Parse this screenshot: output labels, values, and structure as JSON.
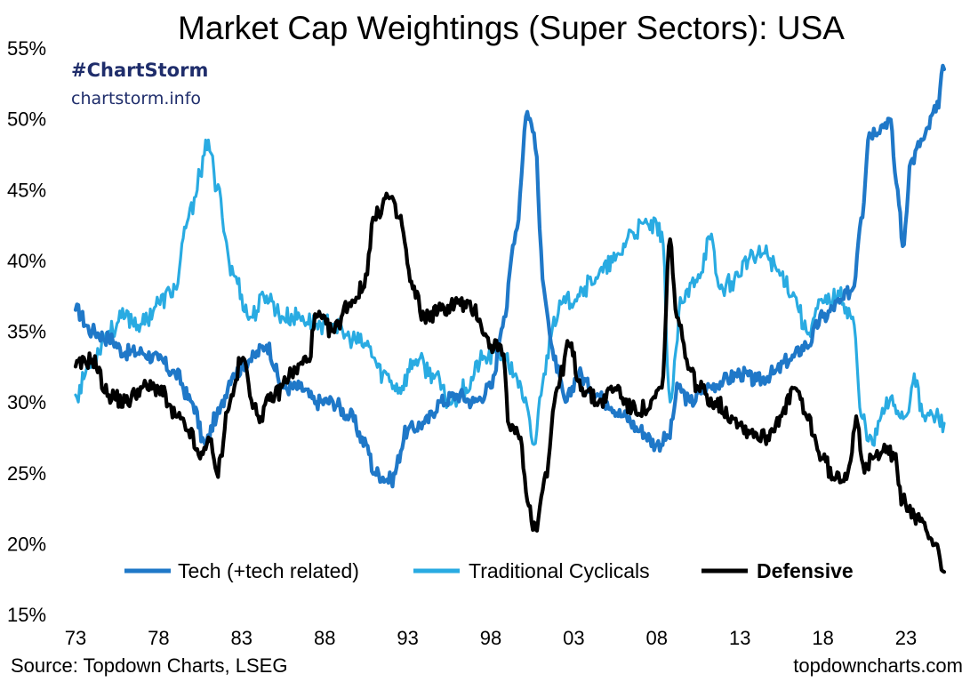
{
  "chart_data": {
    "type": "line",
    "title": "Market Cap Weightings (Super Sectors): USA",
    "xlabel": "",
    "ylabel": "",
    "ylim": [
      15,
      55
    ],
    "xlim": [
      1973,
      2025.5
    ],
    "y_ticks": [
      15,
      20,
      25,
      30,
      35,
      40,
      45,
      50,
      55
    ],
    "y_tick_labels": [
      "15%",
      "20%",
      "25%",
      "30%",
      "35%",
      "40%",
      "45%",
      "50%",
      "55%"
    ],
    "x_ticks": [
      1973,
      1978,
      1983,
      1988,
      1993,
      1998,
      2003,
      2008,
      2013,
      2018,
      2023
    ],
    "x_tick_labels": [
      "73",
      "78",
      "83",
      "88",
      "93",
      "98",
      "03",
      "08",
      "13",
      "18",
      "23"
    ],
    "grid": false,
    "legend_position": "bottom-center",
    "series": [
      {
        "name": "Tech (+tech related)",
        "color": "#1f78c8",
        "bold_label": false,
        "x": [
          1973,
          1974,
          1975,
          1976,
          1977,
          1978,
          1979,
          1980,
          1980.8,
          1981.5,
          1982.5,
          1983.5,
          1984.5,
          1985.5,
          1986.5,
          1987.5,
          1988.5,
          1989.5,
          1990.5,
          1991,
          1992,
          1993,
          1994,
          1995,
          1996,
          1997,
          1998,
          1998.8,
          1999.5,
          2000.2,
          2000.6,
          2001.2,
          2001.8,
          2002.5,
          2003.3,
          2004,
          2005,
          2006,
          2007,
          2008,
          2008.7,
          2009.3,
          2010,
          2011,
          2012,
          2013,
          2014,
          2015,
          2016,
          2017,
          2018,
          2019,
          2019.8,
          2020.3,
          2020.8,
          2021.5,
          2022,
          2022.5,
          2022.8,
          2023.3,
          2024,
          2024.8,
          2025.3
        ],
        "values": [
          36.5,
          35,
          34.5,
          33.5,
          33.5,
          33,
          32,
          30,
          27,
          29,
          32,
          33,
          34,
          31,
          31,
          30,
          30,
          29,
          27,
          25,
          24.5,
          28,
          28.5,
          30,
          30.5,
          30,
          31,
          36,
          42,
          50.5,
          49,
          38,
          33,
          30,
          32,
          31,
          30,
          29,
          28,
          27,
          27.5,
          31,
          30,
          31,
          31.5,
          32,
          31.5,
          32,
          33,
          34,
          36,
          37,
          38,
          43,
          49,
          49.5,
          50,
          45,
          41,
          47,
          48.5,
          50.5,
          53.5
        ]
      },
      {
        "name": "Traditional Cyclicals",
        "color": "#29abe2",
        "bold_label": false,
        "x": [
          1973,
          1974,
          1975,
          1976,
          1977,
          1978,
          1979,
          1979.8,
          1980.5,
          1981,
          1981.5,
          1982.5,
          1983.5,
          1984.5,
          1985.5,
          1986.5,
          1987.5,
          1988.5,
          1989.5,
          1990.5,
          1991.5,
          1992.5,
          1993.5,
          1994.5,
          1995.5,
          1996.5,
          1997.5,
          1998.5,
          1999.5,
          2000,
          2000.6,
          2001.2,
          2001.8,
          2002.5,
          2003.5,
          2004.5,
          2005.5,
          2006.5,
          2007.5,
          2008.3,
          2008.8,
          2009.5,
          2010.5,
          2011.2,
          2011.8,
          2012.5,
          2013.5,
          2014.5,
          2015.5,
          2016.3,
          2017,
          2018,
          2019,
          2019.8,
          2020.3,
          2021,
          2021.5,
          2022,
          2023,
          2023.5,
          2024,
          2024.8,
          2025.3
        ],
        "values": [
          30.5,
          33,
          35,
          36,
          35.5,
          37,
          38,
          43,
          46,
          48.5,
          45,
          39,
          36,
          37.5,
          36,
          36,
          35.5,
          35.5,
          34.5,
          34,
          32,
          31,
          33,
          32,
          30,
          31,
          33,
          33.5,
          32,
          30,
          27,
          32,
          36,
          37,
          38,
          39,
          40,
          42,
          42.5,
          42,
          30,
          37,
          39,
          41.5,
          38,
          38.5,
          40,
          40.5,
          39,
          37.5,
          35,
          37,
          37.5,
          36,
          29,
          27,
          29,
          30,
          29,
          32,
          29,
          29,
          28.5
        ]
      },
      {
        "name": "Defensive",
        "color": "#000000",
        "bold_label": true,
        "x": [
          1973,
          1974,
          1975,
          1976,
          1977,
          1978,
          1979,
          1979.8,
          1980.5,
          1981,
          1981.5,
          1982.3,
          1983,
          1984,
          1985,
          1986,
          1987,
          1987.5,
          1988.5,
          1989.5,
          1990.3,
          1991,
          1991.8,
          1992.5,
          1993.3,
          1994,
          1995,
          1996,
          1997,
          1998,
          1998.6,
          1999.2,
          1999.8,
          2000.2,
          2000.7,
          2001.3,
          2002,
          2002.7,
          2003.5,
          2004.5,
          2005.5,
          2006.5,
          2007.5,
          2008.3,
          2008.8,
          2009.2,
          2009.8,
          2010.5,
          2011.5,
          2012.5,
          2013.5,
          2014.5,
          2015.5,
          2016.3,
          2017,
          2018,
          2018.7,
          2019.5,
          2020,
          2020.5,
          2021,
          2021.7,
          2022.3,
          2022.8,
          2023.5,
          2024.2,
          2024.8,
          2025.3
        ],
        "values": [
          32.5,
          33,
          30.5,
          30,
          31,
          31,
          29,
          28,
          26,
          27.5,
          25,
          30,
          33,
          29,
          30.5,
          32,
          33,
          36,
          35,
          37,
          38,
          43,
          44.5,
          43,
          38,
          36,
          36.5,
          37,
          36.5,
          34,
          34,
          28,
          27.5,
          23,
          21,
          25,
          31,
          34,
          31,
          30,
          31,
          29.5,
          29.5,
          31,
          41.5,
          36,
          33,
          31,
          30,
          29,
          28,
          27.5,
          29,
          31,
          29,
          26,
          24.5,
          25,
          29,
          25,
          26,
          27,
          26,
          23,
          22,
          21,
          20,
          18
        ]
      }
    ]
  },
  "branding": {
    "hashtag": "#ChartStorm",
    "site": "chartstorm.info"
  },
  "footer": {
    "source": "Source: Topdown Charts, LSEG",
    "website": "topdowncharts.com"
  }
}
